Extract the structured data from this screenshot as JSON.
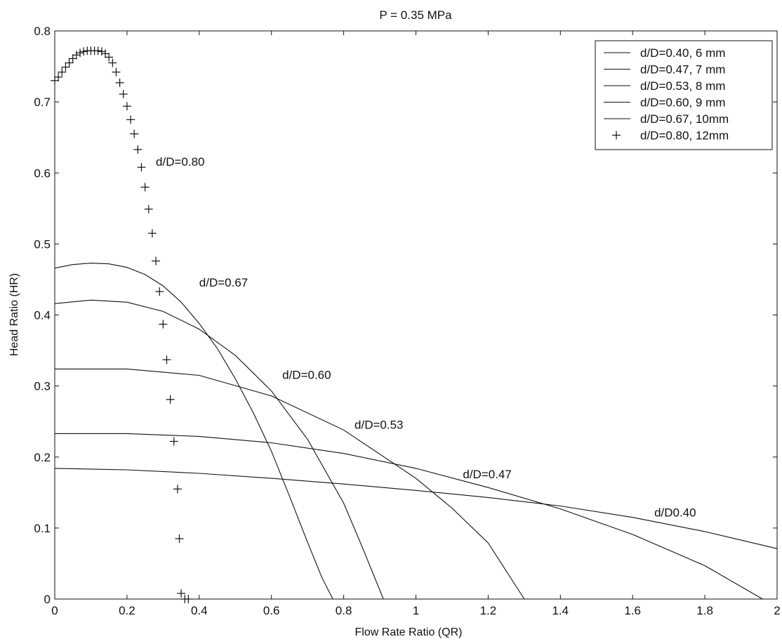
{
  "chart_data": {
    "type": "line",
    "title": "P = 0.35 MPa",
    "xlabel": "Flow Rate Ratio (QR)",
    "ylabel": "Head Ratio (HR)",
    "xlim": [
      0,
      2
    ],
    "ylim": [
      0,
      0.8
    ],
    "xticks": [
      "0",
      "0.2",
      "0.4",
      "0.6",
      "0.8",
      "1",
      "1.2",
      "1.4",
      "1.6",
      "1.8",
      "2"
    ],
    "yticks": [
      "0",
      "0.1",
      "0.2",
      "0.3",
      "0.4",
      "0.5",
      "0.6",
      "0.7",
      "0.8"
    ],
    "grid": false,
    "legend_position": "top-right",
    "series": [
      {
        "name": "d/D=0.40, 6 mm",
        "marker": "line",
        "x": [
          0,
          0.2,
          0.4,
          0.6,
          0.8,
          1.0,
          1.2,
          1.4,
          1.6,
          1.8,
          2.0
        ],
        "y": [
          0.184,
          0.182,
          0.177,
          0.17,
          0.162,
          0.153,
          0.143,
          0.131,
          0.115,
          0.095,
          0.071
        ]
      },
      {
        "name": "d/D=0.47, 7 mm",
        "marker": "line",
        "x": [
          0,
          0.2,
          0.4,
          0.6,
          0.8,
          1.0,
          1.2,
          1.4,
          1.6,
          1.8,
          1.96
        ],
        "y": [
          0.233,
          0.233,
          0.229,
          0.22,
          0.205,
          0.184,
          0.157,
          0.127,
          0.091,
          0.047,
          0.0
        ]
      },
      {
        "name": "d/D=0.53, 8 mm",
        "marker": "line",
        "x": [
          0,
          0.2,
          0.4,
          0.6,
          0.8,
          1.0,
          1.1,
          1.2,
          1.3
        ],
        "y": [
          0.324,
          0.324,
          0.315,
          0.286,
          0.238,
          0.17,
          0.128,
          0.079,
          0.0
        ]
      },
      {
        "name": "d/D=0.60, 9 mm",
        "marker": "line",
        "x": [
          0,
          0.1,
          0.2,
          0.3,
          0.4,
          0.5,
          0.6,
          0.7,
          0.8,
          0.85,
          0.91
        ],
        "y": [
          0.416,
          0.421,
          0.418,
          0.405,
          0.38,
          0.343,
          0.293,
          0.225,
          0.135,
          0.075,
          0.0
        ]
      },
      {
        "name": "d/D=0.67, 10mm",
        "marker": "line",
        "x": [
          0,
          0.05,
          0.1,
          0.15,
          0.2,
          0.25,
          0.3,
          0.35,
          0.4,
          0.45,
          0.5,
          0.55,
          0.6,
          0.65,
          0.7,
          0.74,
          0.77
        ],
        "y": [
          0.466,
          0.471,
          0.473,
          0.472,
          0.467,
          0.457,
          0.441,
          0.418,
          0.388,
          0.353,
          0.31,
          0.262,
          0.208,
          0.145,
          0.08,
          0.03,
          0.0
        ]
      },
      {
        "name": "d/D=0.80, 12mm",
        "marker": "+",
        "x": [
          0.0,
          0.01,
          0.02,
          0.03,
          0.04,
          0.05,
          0.06,
          0.07,
          0.08,
          0.09,
          0.1,
          0.11,
          0.12,
          0.13,
          0.14,
          0.15,
          0.16,
          0.17,
          0.18,
          0.19,
          0.2,
          0.21,
          0.22,
          0.23,
          0.24,
          0.25,
          0.26,
          0.27,
          0.28,
          0.29,
          0.3,
          0.31,
          0.32,
          0.33,
          0.34,
          0.345,
          0.35,
          0.36,
          0.37
        ],
        "y": [
          0.73,
          0.735,
          0.742,
          0.749,
          0.755,
          0.761,
          0.766,
          0.769,
          0.771,
          0.772,
          0.772,
          0.772,
          0.772,
          0.771,
          0.768,
          0.763,
          0.755,
          0.742,
          0.727,
          0.711,
          0.694,
          0.675,
          0.655,
          0.633,
          0.608,
          0.58,
          0.549,
          0.515,
          0.476,
          0.433,
          0.387,
          0.337,
          0.281,
          0.222,
          0.155,
          0.085,
          0.008,
          0.0,
          0.0
        ]
      }
    ],
    "annotations": [
      {
        "text": "d/D=0.80",
        "x": 0.28,
        "y": 0.61
      },
      {
        "text": "d/D=0.67",
        "x": 0.4,
        "y": 0.44
      },
      {
        "text": "d/D=0.60",
        "x": 0.63,
        "y": 0.31
      },
      {
        "text": "d/D=0.53",
        "x": 0.83,
        "y": 0.24
      },
      {
        "text": "d/D=0.47",
        "x": 1.13,
        "y": 0.17
      },
      {
        "text": "d/D0.40",
        "x": 1.66,
        "y": 0.116
      }
    ]
  }
}
